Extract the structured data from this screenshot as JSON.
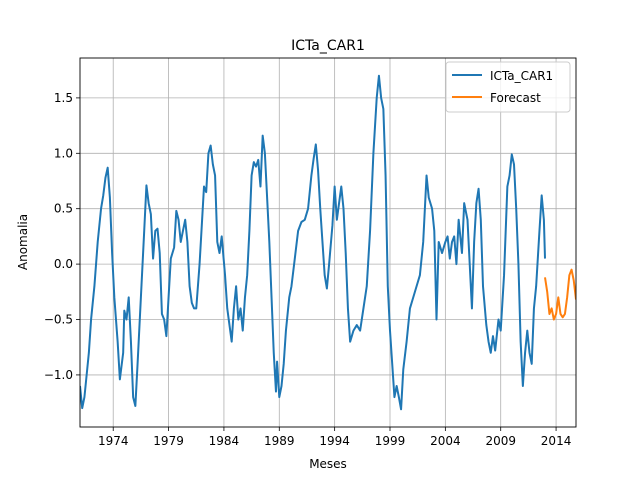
{
  "chart_data": {
    "type": "line",
    "title": "ICTa_CAR1",
    "xlabel": "Meses",
    "ylabel": "Anomalia",
    "xlim": [
      1971.0,
      2015.8
    ],
    "ylim": [
      -1.47,
      1.86
    ],
    "grid": true,
    "legend_position": "top-right",
    "x_ticks": [
      1974,
      1979,
      1984,
      1989,
      1994,
      1999,
      2004,
      2009,
      2014
    ],
    "x_tick_labels": [
      "1974",
      "1979",
      "1984",
      "1989",
      "1994",
      "1999",
      "2004",
      "2009",
      "2014"
    ],
    "y_ticks": [
      -1.0,
      -0.5,
      0.0,
      0.5,
      1.0,
      1.5
    ],
    "y_tick_labels": [
      "−1.0",
      "−0.5",
      "0.0",
      "0.5",
      "1.0",
      "1.5"
    ],
    "colors": {
      "ICTa_CAR1": "#1f77b4",
      "Forecast": "#ff7f0e",
      "grid": "#b0b0b0"
    },
    "series": [
      {
        "name": "ICTa_CAR1",
        "points": [
          [
            1971.0,
            -1.1
          ],
          [
            1971.2,
            -1.3
          ],
          [
            1971.4,
            -1.2
          ],
          [
            1971.6,
            -1.0
          ],
          [
            1971.8,
            -0.8
          ],
          [
            1972.0,
            -0.5
          ],
          [
            1972.3,
            -0.2
          ],
          [
            1972.6,
            0.2
          ],
          [
            1972.9,
            0.5
          ],
          [
            1973.1,
            0.62
          ],
          [
            1973.3,
            0.78
          ],
          [
            1973.5,
            0.87
          ],
          [
            1973.7,
            0.6
          ],
          [
            1973.9,
            0.1
          ],
          [
            1974.1,
            -0.3
          ],
          [
            1974.4,
            -0.7
          ],
          [
            1974.6,
            -1.04
          ],
          [
            1974.9,
            -0.8
          ],
          [
            1975.0,
            -0.42
          ],
          [
            1975.2,
            -0.5
          ],
          [
            1975.4,
            -0.3
          ],
          [
            1975.6,
            -0.7
          ],
          [
            1975.8,
            -1.2
          ],
          [
            1976.0,
            -1.28
          ],
          [
            1976.2,
            -0.9
          ],
          [
            1976.5,
            -0.3
          ],
          [
            1976.8,
            0.3
          ],
          [
            1977.0,
            0.71
          ],
          [
            1977.2,
            0.55
          ],
          [
            1977.4,
            0.45
          ],
          [
            1977.6,
            0.05
          ],
          [
            1977.8,
            0.3
          ],
          [
            1978.0,
            0.32
          ],
          [
            1978.2,
            0.1
          ],
          [
            1978.4,
            -0.45
          ],
          [
            1978.6,
            -0.5
          ],
          [
            1978.8,
            -0.65
          ],
          [
            1979.0,
            -0.3
          ],
          [
            1979.2,
            0.05
          ],
          [
            1979.5,
            0.15
          ],
          [
            1979.7,
            0.48
          ],
          [
            1979.9,
            0.4
          ],
          [
            1980.1,
            0.2
          ],
          [
            1980.3,
            0.3
          ],
          [
            1980.5,
            0.4
          ],
          [
            1980.7,
            0.2
          ],
          [
            1980.9,
            -0.2
          ],
          [
            1981.1,
            -0.35
          ],
          [
            1981.3,
            -0.4
          ],
          [
            1981.5,
            -0.4
          ],
          [
            1981.8,
            0.0
          ],
          [
            1982.0,
            0.35
          ],
          [
            1982.2,
            0.7
          ],
          [
            1982.4,
            0.65
          ],
          [
            1982.6,
            1.0
          ],
          [
            1982.8,
            1.07
          ],
          [
            1983.0,
            0.9
          ],
          [
            1983.2,
            0.8
          ],
          [
            1983.4,
            0.2
          ],
          [
            1983.6,
            0.1
          ],
          [
            1983.8,
            0.25
          ],
          [
            1984.1,
            -0.1
          ],
          [
            1984.3,
            -0.4
          ],
          [
            1984.5,
            -0.55
          ],
          [
            1984.7,
            -0.7
          ],
          [
            1984.9,
            -0.4
          ],
          [
            1985.1,
            -0.2
          ],
          [
            1985.3,
            -0.5
          ],
          [
            1985.5,
            -0.4
          ],
          [
            1985.7,
            -0.6
          ],
          [
            1985.9,
            -0.3
          ],
          [
            1986.1,
            -0.1
          ],
          [
            1986.3,
            0.3
          ],
          [
            1986.5,
            0.8
          ],
          [
            1986.7,
            0.92
          ],
          [
            1986.9,
            0.88
          ],
          [
            1987.1,
            0.94
          ],
          [
            1987.3,
            0.7
          ],
          [
            1987.5,
            1.16
          ],
          [
            1987.7,
            1.0
          ],
          [
            1987.9,
            0.6
          ],
          [
            1988.1,
            0.2
          ],
          [
            1988.3,
            -0.3
          ],
          [
            1988.5,
            -0.8
          ],
          [
            1988.7,
            -1.15
          ],
          [
            1988.8,
            -0.88
          ],
          [
            1989.0,
            -1.2
          ],
          [
            1989.2,
            -1.1
          ],
          [
            1989.4,
            -0.9
          ],
          [
            1989.6,
            -0.6
          ],
          [
            1989.9,
            -0.3
          ],
          [
            1990.1,
            -0.2
          ],
          [
            1990.4,
            0.05
          ],
          [
            1990.7,
            0.3
          ],
          [
            1991.0,
            0.38
          ],
          [
            1991.3,
            0.4
          ],
          [
            1991.6,
            0.5
          ],
          [
            1991.9,
            0.8
          ],
          [
            1992.1,
            0.95
          ],
          [
            1992.3,
            1.08
          ],
          [
            1992.5,
            0.85
          ],
          [
            1992.7,
            0.5
          ],
          [
            1992.9,
            0.2
          ],
          [
            1993.1,
            -0.1
          ],
          [
            1993.3,
            -0.22
          ],
          [
            1993.5,
            0.0
          ],
          [
            1993.8,
            0.35
          ],
          [
            1994.0,
            0.7
          ],
          [
            1994.2,
            0.4
          ],
          [
            1994.4,
            0.55
          ],
          [
            1994.6,
            0.7
          ],
          [
            1994.8,
            0.5
          ],
          [
            1995.0,
            0.1
          ],
          [
            1995.2,
            -0.4
          ],
          [
            1995.4,
            -0.7
          ],
          [
            1995.7,
            -0.6
          ],
          [
            1996.0,
            -0.55
          ],
          [
            1996.3,
            -0.6
          ],
          [
            1996.6,
            -0.4
          ],
          [
            1996.9,
            -0.2
          ],
          [
            1997.2,
            0.3
          ],
          [
            1997.5,
            1.0
          ],
          [
            1997.8,
            1.5
          ],
          [
            1998.0,
            1.7
          ],
          [
            1998.2,
            1.5
          ],
          [
            1998.4,
            1.4
          ],
          [
            1998.6,
            0.8
          ],
          [
            1998.8,
            -0.2
          ],
          [
            1999.0,
            -0.6
          ],
          [
            1999.2,
            -0.9
          ],
          [
            1999.4,
            -1.2
          ],
          [
            1999.6,
            -1.1
          ],
          [
            1999.8,
            -1.2
          ],
          [
            2000.0,
            -1.31
          ],
          [
            2000.2,
            -0.95
          ],
          [
            2000.5,
            -0.7
          ],
          [
            2000.8,
            -0.4
          ],
          [
            2001.1,
            -0.3
          ],
          [
            2001.4,
            -0.2
          ],
          [
            2001.7,
            -0.1
          ],
          [
            2002.0,
            0.2
          ],
          [
            2002.3,
            0.8
          ],
          [
            2002.5,
            0.6
          ],
          [
            2002.8,
            0.5
          ],
          [
            2003.0,
            0.3
          ],
          [
            2003.2,
            -0.5
          ],
          [
            2003.4,
            0.2
          ],
          [
            2003.7,
            0.1
          ],
          [
            2004.0,
            0.2
          ],
          [
            2004.2,
            0.25
          ],
          [
            2004.4,
            0.05
          ],
          [
            2004.6,
            0.2
          ],
          [
            2004.8,
            0.25
          ],
          [
            2005.0,
            0.0
          ],
          [
            2005.2,
            0.4
          ],
          [
            2005.5,
            0.1
          ],
          [
            2005.7,
            0.55
          ],
          [
            2006.0,
            0.4
          ],
          [
            2006.2,
            0.0
          ],
          [
            2006.4,
            -0.4
          ],
          [
            2006.6,
            0.2
          ],
          [
            2006.8,
            0.55
          ],
          [
            2007.0,
            0.68
          ],
          [
            2007.2,
            0.4
          ],
          [
            2007.4,
            -0.2
          ],
          [
            2007.7,
            -0.55
          ],
          [
            2007.9,
            -0.7
          ],
          [
            2008.1,
            -0.8
          ],
          [
            2008.3,
            -0.65
          ],
          [
            2008.5,
            -0.78
          ],
          [
            2008.8,
            -0.5
          ],
          [
            2009.0,
            -0.6
          ],
          [
            2009.3,
            -0.1
          ],
          [
            2009.6,
            0.7
          ],
          [
            2009.8,
            0.8
          ],
          [
            2010.0,
            0.99
          ],
          [
            2010.2,
            0.9
          ],
          [
            2010.4,
            0.5
          ],
          [
            2010.6,
            0.0
          ],
          [
            2010.8,
            -0.7
          ],
          [
            2011.0,
            -1.1
          ],
          [
            2011.2,
            -0.8
          ],
          [
            2011.4,
            -0.6
          ],
          [
            2011.6,
            -0.8
          ],
          [
            2011.8,
            -0.9
          ],
          [
            2012.0,
            -0.4
          ],
          [
            2012.2,
            -0.2
          ],
          [
            2012.5,
            0.3
          ],
          [
            2012.7,
            0.62
          ],
          [
            2012.9,
            0.4
          ],
          [
            2013.0,
            0.05
          ]
        ]
      },
      {
        "name": "Forecast",
        "points": [
          [
            2013.0,
            -0.12
          ],
          [
            2013.2,
            -0.25
          ],
          [
            2013.4,
            -0.45
          ],
          [
            2013.6,
            -0.4
          ],
          [
            2013.8,
            -0.5
          ],
          [
            2014.0,
            -0.45
          ],
          [
            2014.2,
            -0.3
          ],
          [
            2014.4,
            -0.45
          ],
          [
            2014.6,
            -0.48
          ],
          [
            2014.8,
            -0.45
          ],
          [
            2015.0,
            -0.3
          ],
          [
            2015.2,
            -0.1
          ],
          [
            2015.4,
            -0.05
          ],
          [
            2015.6,
            -0.15
          ],
          [
            2015.8,
            -0.32
          ]
        ]
      }
    ]
  }
}
